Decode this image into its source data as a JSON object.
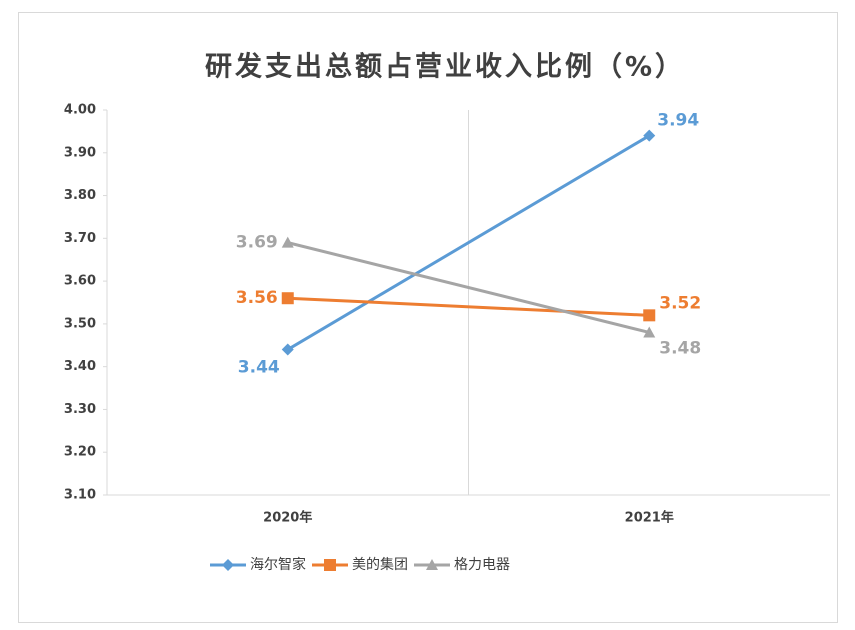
{
  "chart_data": {
    "type": "line",
    "title": "研发支出总额占营业收入比例（%）",
    "categories": [
      "2020年",
      "2021年"
    ],
    "series": [
      {
        "name": "海尔智家",
        "color": "#5b9bd5",
        "marker": "diamond",
        "values": [
          3.44,
          3.94
        ]
      },
      {
        "name": "美的集团",
        "color": "#ed7d31",
        "marker": "square",
        "values": [
          3.56,
          3.52
        ]
      },
      {
        "name": "格力电器",
        "color": "#a5a5a5",
        "marker": "triangle",
        "values": [
          3.69,
          3.48
        ]
      }
    ],
    "ylim": [
      3.1,
      4.0
    ],
    "yticks": [
      {
        "value": 3.1,
        "label": "3.10"
      },
      {
        "value": 3.2,
        "label": "3.20"
      },
      {
        "value": 3.3,
        "label": "3.30"
      },
      {
        "value": 3.4,
        "label": "3.40"
      },
      {
        "value": 3.5,
        "label": "3.50"
      },
      {
        "value": 3.6,
        "label": "3.60"
      },
      {
        "value": 3.7,
        "label": "3.70"
      },
      {
        "value": 3.8,
        "label": "3.80"
      },
      {
        "value": 3.9,
        "label": "3.90"
      },
      {
        "value": 4.0,
        "label": "4.00"
      }
    ],
    "legend": "bottom"
  }
}
